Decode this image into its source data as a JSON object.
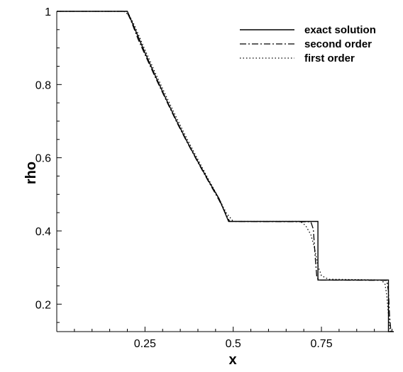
{
  "chart_data": {
    "type": "line",
    "title": "",
    "xlabel": "x",
    "ylabel": "rho",
    "xlim": [
      0.0,
      0.955
    ],
    "ylim": [
      0.125,
      1.0
    ],
    "xticks": [
      0.25,
      0.5,
      0.75
    ],
    "xtick_labels": [
      "0.25",
      "0.5",
      "0.75"
    ],
    "yticks": [
      0.2,
      0.4,
      0.6,
      0.8,
      1.0
    ],
    "ytick_labels": [
      "0.2",
      "0.4",
      "0.6",
      "0.8",
      "1"
    ],
    "grid": false,
    "legend_position": "top-right",
    "series": [
      {
        "name": "exact solution",
        "style": "solid",
        "color": "#000000",
        "x": [
          0.0,
          0.2,
          0.22,
          0.25,
          0.28,
          0.31,
          0.34,
          0.37,
          0.4,
          0.43,
          0.46,
          0.487,
          0.73,
          0.73,
          0.74,
          0.74,
          0.94,
          0.94,
          0.955
        ],
        "y": [
          1.0,
          1.0,
          0.955,
          0.887,
          0.822,
          0.76,
          0.7,
          0.643,
          0.589,
          0.537,
          0.488,
          0.426,
          0.426,
          0.426,
          0.426,
          0.266,
          0.266,
          0.125,
          0.125
        ]
      },
      {
        "name": "second order",
        "style": "dashdot",
        "color": "#000000",
        "x": [
          0.0,
          0.198,
          0.21,
          0.23,
          0.25,
          0.28,
          0.31,
          0.34,
          0.37,
          0.4,
          0.43,
          0.46,
          0.48,
          0.49,
          0.72,
          0.727,
          0.733,
          0.737,
          0.745,
          0.935,
          0.94,
          0.943,
          0.947
        ],
        "y": [
          1.0,
          1.0,
          0.975,
          0.925,
          0.882,
          0.818,
          0.757,
          0.697,
          0.641,
          0.587,
          0.535,
          0.484,
          0.445,
          0.426,
          0.425,
          0.405,
          0.32,
          0.272,
          0.266,
          0.265,
          0.235,
          0.17,
          0.125
        ]
      },
      {
        "name": "first order",
        "style": "dotted",
        "color": "#000000",
        "x": [
          0.0,
          0.19,
          0.205,
          0.22,
          0.25,
          0.28,
          0.31,
          0.34,
          0.37,
          0.4,
          0.43,
          0.46,
          0.48,
          0.5,
          0.69,
          0.705,
          0.72,
          0.73,
          0.74,
          0.75,
          0.77,
          0.92,
          0.93,
          0.935,
          0.94,
          0.945
        ],
        "y": [
          1.0,
          1.0,
          0.99,
          0.962,
          0.895,
          0.83,
          0.768,
          0.708,
          0.65,
          0.595,
          0.541,
          0.488,
          0.45,
          0.426,
          0.426,
          0.415,
          0.39,
          0.355,
          0.305,
          0.278,
          0.268,
          0.266,
          0.255,
          0.225,
          0.17,
          0.125
        ]
      }
    ]
  }
}
